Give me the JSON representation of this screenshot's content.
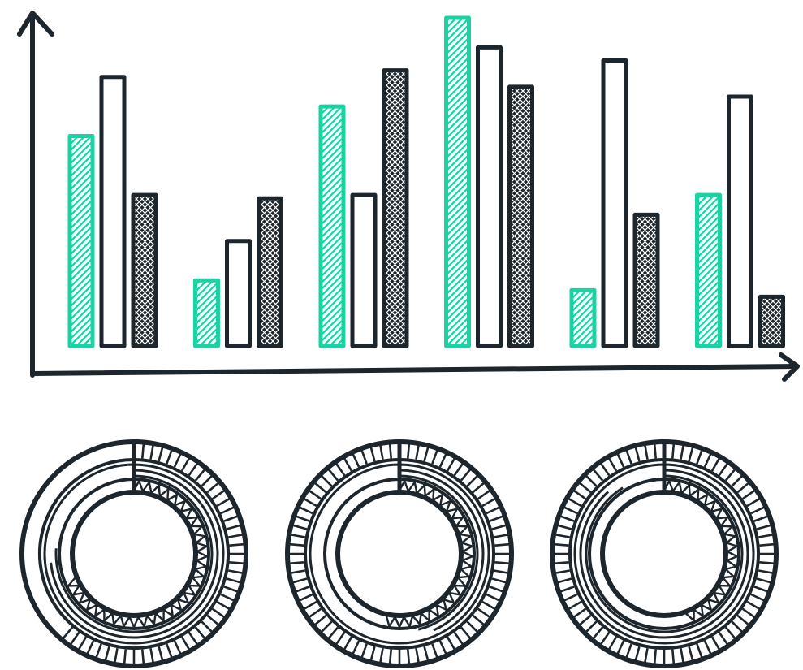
{
  "colors": {
    "ink": "#1d252d",
    "accent": "#19d3a2",
    "background": "#ffffff"
  },
  "chart_data": [
    {
      "type": "bar",
      "title": "",
      "xlabel": "",
      "ylabel": "",
      "ylim": [
        0,
        100
      ],
      "grid": false,
      "legend": "none",
      "categories": [
        "",
        "",
        "",
        "",
        "",
        ""
      ],
      "series": [
        {
          "fill": "accent-diagonal-hatch",
          "values": [
            64,
            20,
            73,
            100,
            17,
            46
          ]
        },
        {
          "fill": "outline-white",
          "values": [
            82,
            32,
            46,
            91,
            87,
            76
          ]
        },
        {
          "fill": "dark-crosshatch",
          "values": [
            46,
            45,
            84,
            79,
            40,
            15
          ]
        }
      ]
    },
    {
      "type": "pie",
      "style": "concentric-ring-gauges",
      "gauges": [
        {
          "outer_ring": 0.62,
          "middle_ring": 0.75,
          "inner_ring": 0.69
        },
        {
          "outer_ring": 1.0,
          "middle_ring": 0.45,
          "inner_ring": 0.54
        },
        {
          "outer_ring": 1.0,
          "middle_ring": 0.9,
          "inner_ring": 0.45
        }
      ]
    }
  ]
}
